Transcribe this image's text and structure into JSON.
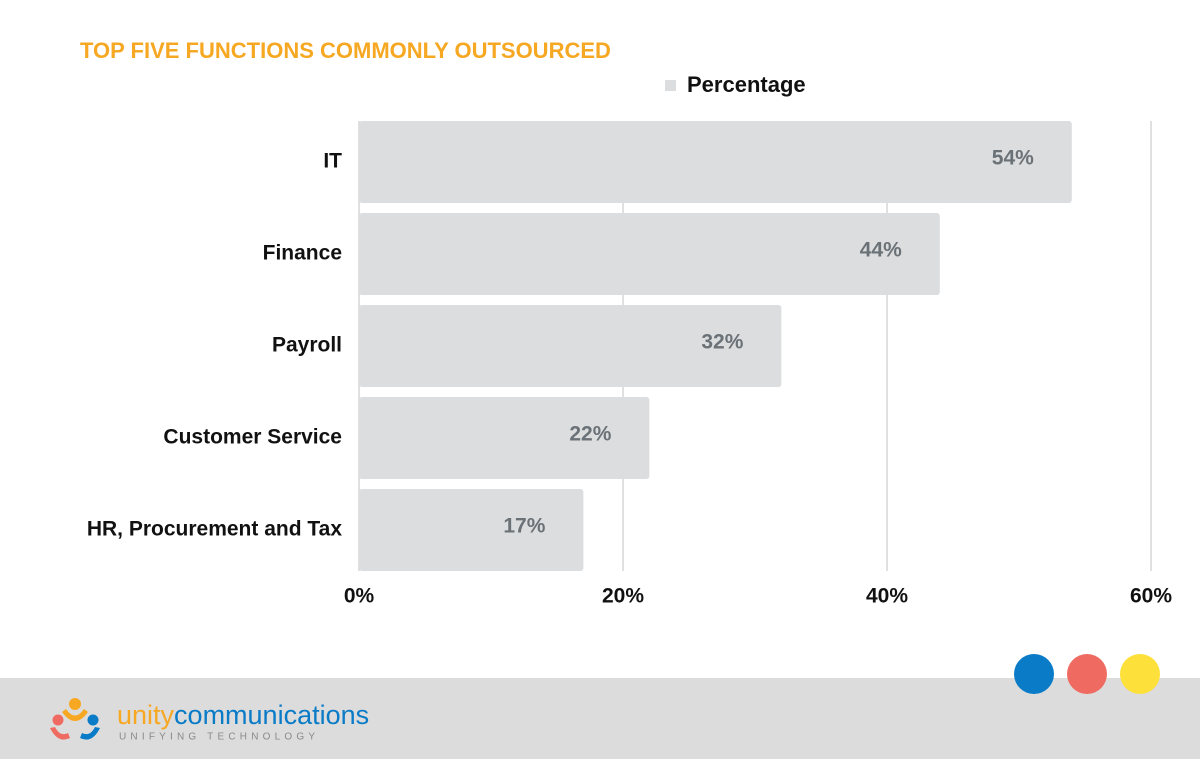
{
  "chart_data": {
    "type": "bar",
    "orientation": "horizontal",
    "title": "TOP FIVE FUNCTIONS COMMONLY OUTSOURCED",
    "categories": [
      "IT",
      "Finance",
      "Payroll",
      "Customer Service",
      "HR, Procurement and Tax"
    ],
    "series": [
      {
        "name": "Percentage",
        "color": "#dcdddf",
        "values": [
          54,
          44,
          32,
          22,
          17
        ],
        "value_labels": [
          "54%",
          "44%",
          "32%",
          "22%",
          "17%"
        ]
      }
    ],
    "xlim": [
      0,
      60
    ],
    "xticks": [
      {
        "value": 0,
        "label": "0%"
      },
      {
        "value": 20,
        "label": "20%"
      },
      {
        "value": 40,
        "label": "40%"
      },
      {
        "value": 60,
        "label": "60%"
      }
    ],
    "grid": true,
    "legend": "top"
  },
  "footer": {
    "logo_part_1": "unity",
    "logo_part_2": "communications",
    "tagline": "UNIFYING TECHNOLOGY"
  }
}
